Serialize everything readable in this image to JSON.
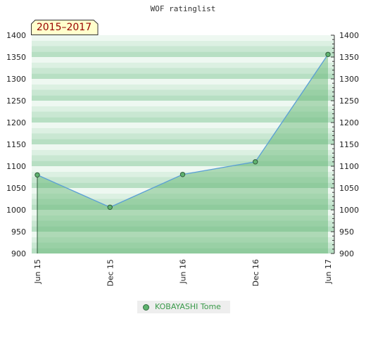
{
  "chart_data": {
    "type": "area",
    "title": "WOF ratinglist",
    "range_label": "2015–2017",
    "categories": [
      "Jun 15",
      "Dec 15",
      "Jun 16",
      "Dec 16",
      "Jun 17"
    ],
    "series": [
      {
        "name": "KOBAYASHI Tome",
        "values": [
          1080,
          1006,
          1081,
          1110,
          1356
        ]
      }
    ],
    "ylim": [
      900,
      1400
    ],
    "yticks": [
      900,
      950,
      1000,
      1050,
      1100,
      1150,
      1200,
      1250,
      1300,
      1350,
      1400
    ],
    "grid": true,
    "legend_position": "bottom-center",
    "colors": {
      "line": "#5b9fd6",
      "fill": "#5fb36f",
      "marker": "#5fb36f",
      "band_dark": "#b7dfc3",
      "band_light": "#eef8f1"
    }
  }
}
